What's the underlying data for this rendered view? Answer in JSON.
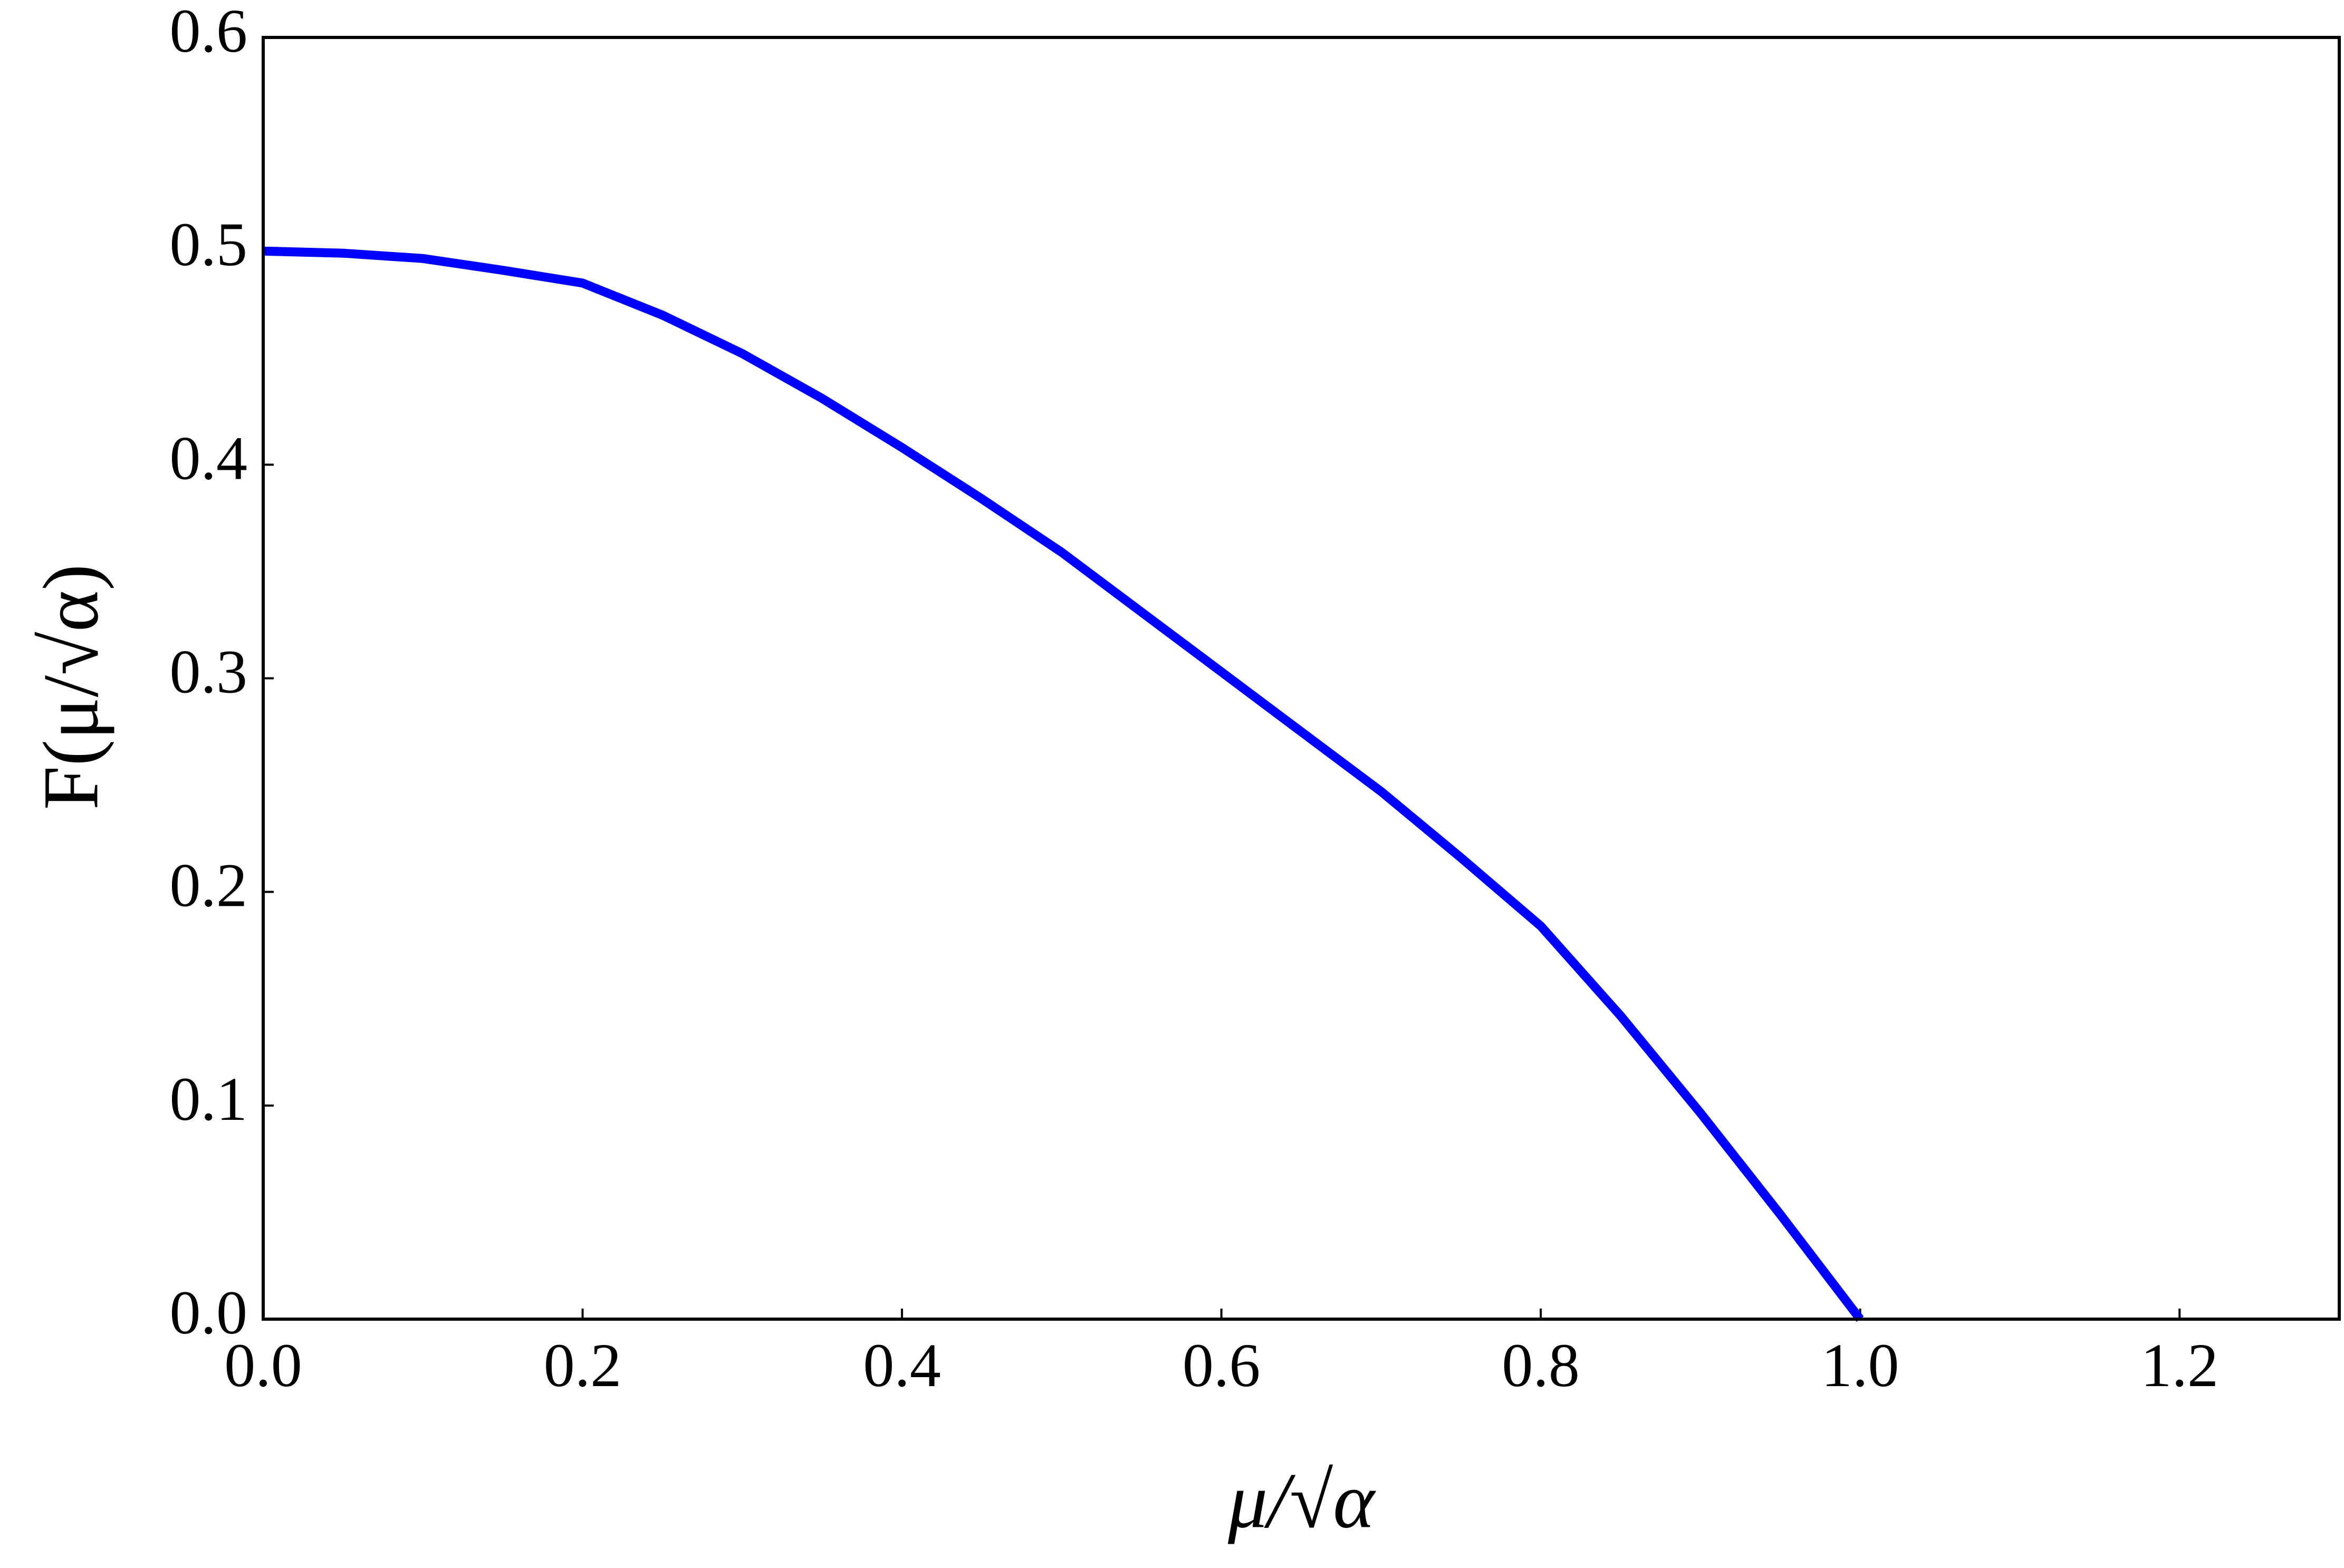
{
  "chart_data": {
    "type": "line",
    "x_label": "μ/√α",
    "y_label": "F(μ/√α)",
    "xlim": [
      0,
      1.3
    ],
    "ylim": [
      0,
      0.6
    ],
    "xticks": [
      {
        "value": 0,
        "label": "0.0"
      },
      {
        "value": 0.2,
        "label": "0.2"
      },
      {
        "value": 0.4,
        "label": "0.4"
      },
      {
        "value": 0.6,
        "label": "0.6"
      },
      {
        "value": 0.8,
        "label": "0.8"
      },
      {
        "value": 1.0,
        "label": "1.0"
      },
      {
        "value": 1.2,
        "label": "1.2"
      }
    ],
    "yticks": [
      {
        "value": 0,
        "label": "0.0"
      },
      {
        "value": 0.1,
        "label": "0.1"
      },
      {
        "value": 0.2,
        "label": "0.2"
      },
      {
        "value": 0.3,
        "label": "0.3"
      },
      {
        "value": 0.4,
        "label": "0.4"
      },
      {
        "value": 0.5,
        "label": "0.5"
      },
      {
        "value": 0.6,
        "label": "0.6"
      }
    ],
    "grid": false,
    "x": [
      0,
      0.05,
      0.1,
      0.15,
      0.2,
      0.25,
      0.3,
      0.35,
      0.4,
      0.45,
      0.5,
      0.55,
      0.6,
      0.65,
      0.7,
      0.75,
      0.8,
      0.85,
      0.9,
      0.95,
      1.0
    ],
    "series": [
      {
        "color": "#0000ff",
        "values": [
          0.5,
          0.499,
          0.4965,
          0.491,
          0.485,
          0.47,
          0.452,
          0.431,
          0.408,
          0.384,
          0.359,
          0.331,
          0.303,
          0.275,
          0.247,
          0.216,
          0.184,
          0.142,
          0.0965,
          0.049,
          0
        ]
      }
    ]
  }
}
